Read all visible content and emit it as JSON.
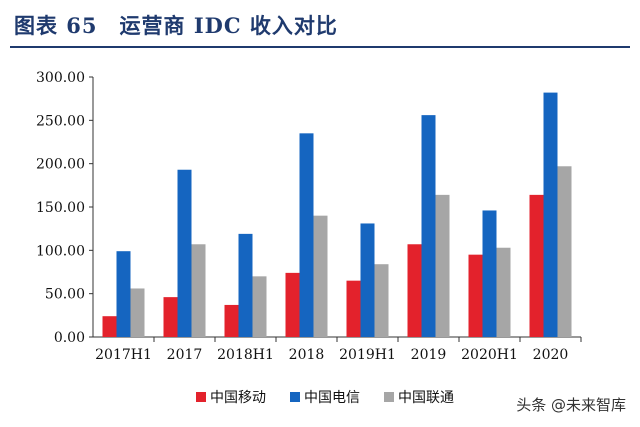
{
  "title": "图表 65　运营商 IDC 收入对比",
  "watermark": "头条 @未来智库",
  "chart_data": {
    "type": "bar",
    "title": "",
    "categories": [
      "2017H1",
      "2017",
      "2018H1",
      "2018",
      "2019H1",
      "2019",
      "2020H1",
      "2020"
    ],
    "ylim": [
      0,
      300
    ],
    "yticks": [
      "0.00",
      "50.00",
      "100.00",
      "150.00",
      "200.00",
      "250.00",
      "300.00"
    ],
    "grid": false,
    "legend_position": "bottom",
    "series": [
      {
        "name": "中国移动",
        "color": "#e3222c",
        "values": [
          24,
          46,
          37,
          74,
          65,
          107,
          95,
          164
        ]
      },
      {
        "name": "中国电信",
        "color": "#1565c0",
        "values": [
          99,
          193,
          119,
          235,
          131,
          256,
          146,
          282
        ]
      },
      {
        "name": "中国联通",
        "color": "#a6a6a6",
        "values": [
          56,
          107,
          70,
          140,
          84,
          164,
          103,
          197
        ]
      }
    ]
  }
}
